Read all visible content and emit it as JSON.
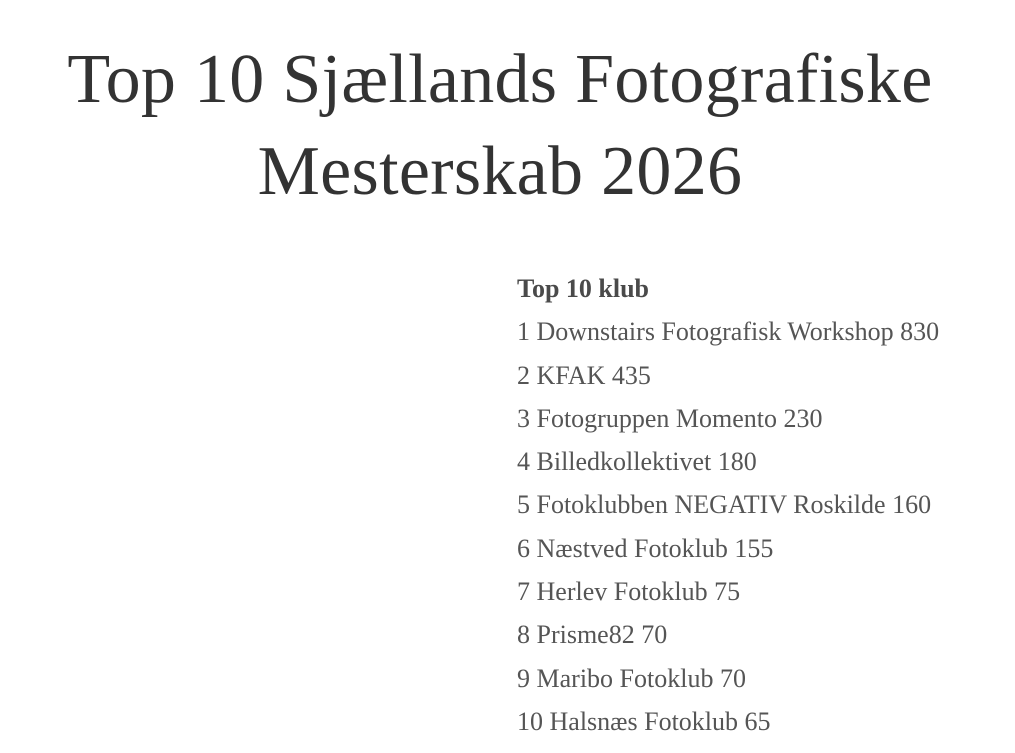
{
  "page": {
    "title": "Top 10 Sjællands Fotografiske Mesterskab 2026"
  },
  "club_list": {
    "heading": "Top 10 klub",
    "items": [
      "1 Downstairs Fotografisk Workshop 830",
      "2 KFAK 435",
      "3 Fotogruppen Momento 230",
      "4 Billedkollektivet 180",
      "5 Fotoklubben NEGATIV Roskilde 160",
      "6 Næstved Fotoklub 155",
      "7 Herlev Fotoklub 75",
      "8 Prisme82 70",
      "9 Maribo Fotoklub 70",
      "10 Halsnæs Fotoklub 65"
    ]
  }
}
